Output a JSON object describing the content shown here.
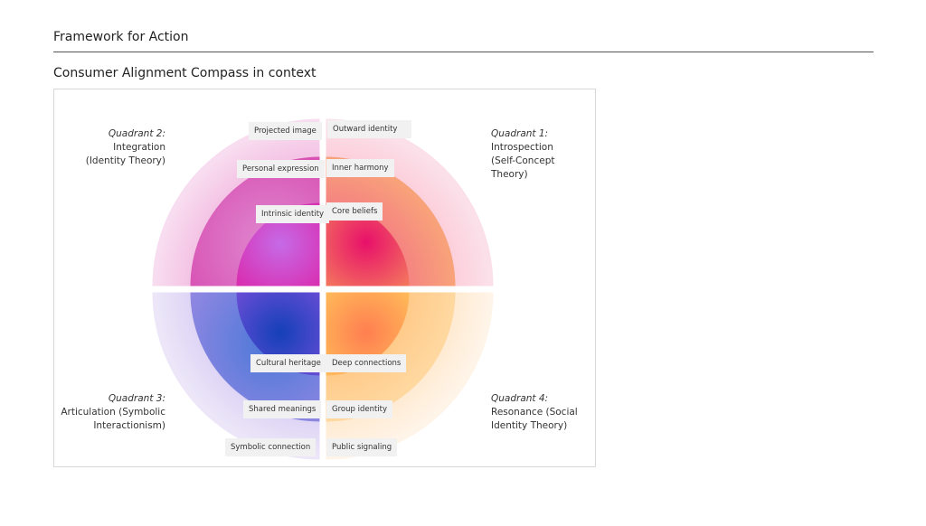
{
  "header": {
    "title": "Framework for Action",
    "subtitle": "Consumer Alignment Compass in context"
  },
  "quadrants": [
    {
      "id": "q1",
      "heading": "Quadrant 1:",
      "lines": [
        "Introspection",
        "(Self-Concept",
        "Theory)"
      ],
      "colors": {
        "outer": "#fad4e2",
        "middle": "#f2679a",
        "inner": "#e8106a",
        "edge": "#f8a458"
      }
    },
    {
      "id": "q2",
      "heading": "Quadrant 2:",
      "lines": [
        "Integration",
        "(Identity Theory)"
      ],
      "colors": {
        "outer": "#f6d0ec",
        "middle": "#d84fb6",
        "inner": "#e0209a",
        "center": "#c468e4"
      }
    },
    {
      "id": "q3",
      "heading": "Quadrant 3:",
      "lines": [
        "Articulation (Symbolic",
        "Interactionism)"
      ],
      "colors": {
        "outer": "#e4dcf6",
        "middle": "#8c74e0",
        "inner": "#1a44c2",
        "edge": "#8a52e2"
      }
    },
    {
      "id": "q4",
      "heading": "Quadrant 4:",
      "lines": [
        "Resonance (Social",
        "Identity Theory)"
      ],
      "colors": {
        "outer": "#fff2e0",
        "middle": "#ffbe70",
        "inner": "#ff8052",
        "edge": "#ffd45e"
      }
    }
  ],
  "labels": {
    "projected_image": "Projected image",
    "outward_identity": "Outward identity",
    "personal_expression": "Personal expression",
    "inner_harmony": "Inner harmony",
    "intrinsic_identity": "Intrinsic identity",
    "core_beliefs": "Core beliefs",
    "cultural_heritage": "Cultural heritage",
    "deep_connections": "Deep connections",
    "shared_meanings": "Shared meanings",
    "group_identity": "Group identity",
    "symbolic_connection": "Symbolic connection",
    "public_signaling": "Public signaling"
  }
}
